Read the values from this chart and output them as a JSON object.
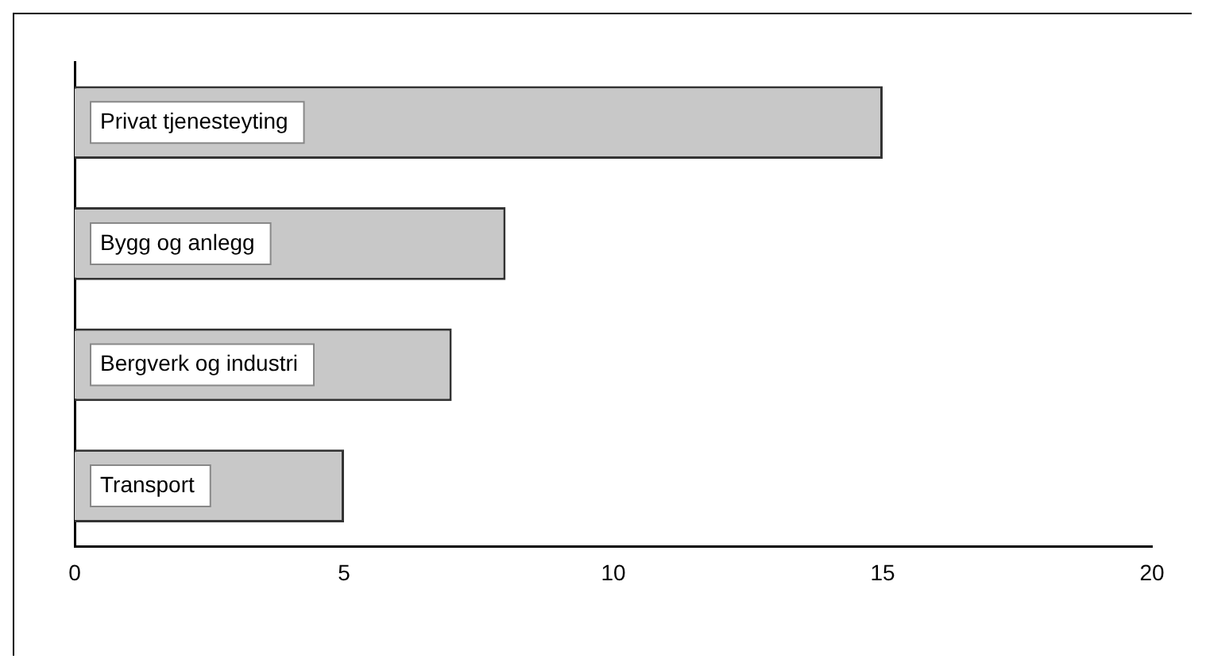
{
  "chart_data": {
    "type": "bar",
    "orientation": "horizontal",
    "categories": [
      "Privat tjenesteyting",
      "Bygg og anlegg",
      "Bergverk og industri",
      "Transport"
    ],
    "values": [
      15,
      8,
      7,
      5
    ],
    "color": "#c8c8c8",
    "xlim": [
      0,
      20
    ],
    "xticks": [
      0,
      5,
      10,
      15,
      20
    ],
    "grid": false,
    "legend": false
  }
}
